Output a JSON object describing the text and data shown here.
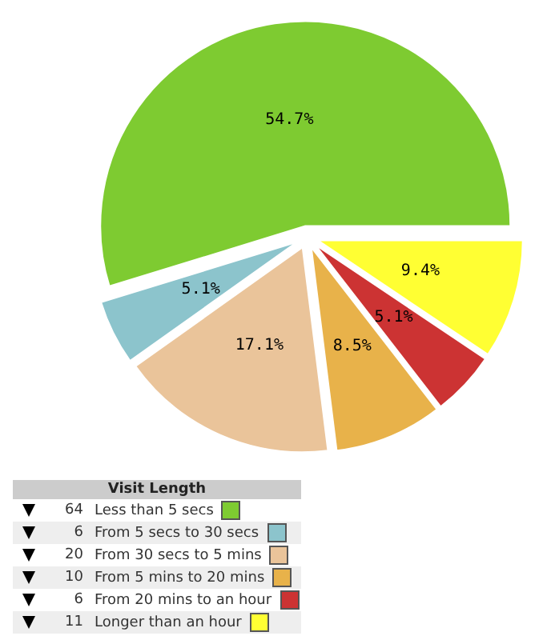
{
  "chart_data": {
    "type": "pie",
    "legend_title": "Visit Length",
    "categories": [
      "Less than 5 secs",
      "From 5 secs to 30 secs",
      "From 30 secs to 5 mins",
      "From 5 mins to 20 mins",
      "From 20 mins to an hour",
      "Longer than an hour"
    ],
    "values": [
      54.7,
      5.1,
      17.1,
      8.5,
      5.1,
      9.4
    ],
    "value_labels": [
      "54.7%",
      "5.1%",
      "17.1%",
      "8.5%",
      "5.1%",
      "9.4%"
    ],
    "annotations": [
      "64",
      "6",
      "20",
      "10",
      "6",
      "11"
    ],
    "colors": [
      "#7ecb31",
      "#8cc4cc",
      "#eac49a",
      "#e8b24a",
      "#cc3333",
      "#ffff33"
    ],
    "legend": "bottom left"
  }
}
